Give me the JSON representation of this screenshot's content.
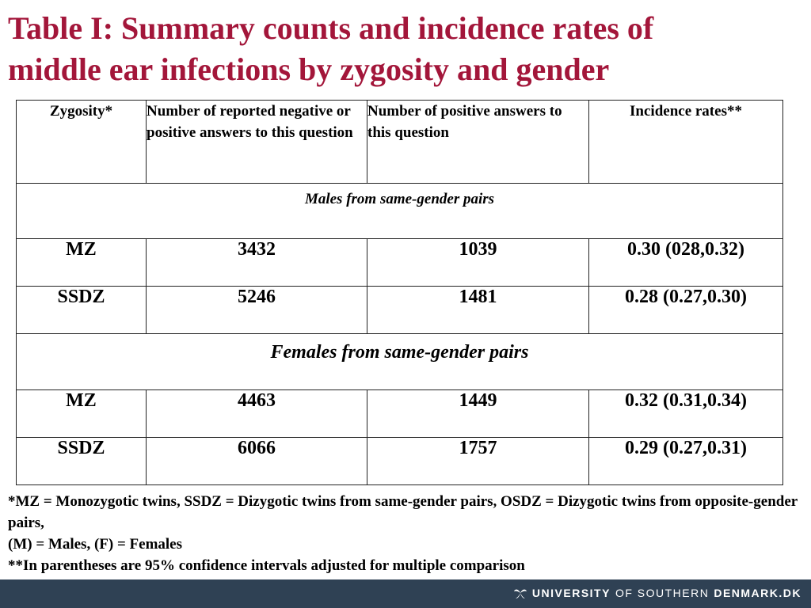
{
  "title": {
    "line1": "Table I: Summary counts and incidence rates of",
    "line2": "middle ear infections by zygosity and gender"
  },
  "table": {
    "headers": [
      "Zygosity*",
      "Number of reported negative or positive answers to this question",
      "Number of positive answers to this question",
      "Incidence rates**"
    ],
    "sections": [
      {
        "label": "Males from same-gender pairs",
        "rows": [
          [
            "MZ",
            "3432",
            "1039",
            "0.30 (028,0.32)"
          ],
          [
            "SSDZ",
            "5246",
            "1481",
            "0.28 (0.27,0.30)"
          ]
        ]
      },
      {
        "label": "Females from same-gender pairs",
        "rows": [
          [
            "MZ",
            "4463",
            "1449",
            "0.32 (0.31,0.34)"
          ],
          [
            "SSDZ",
            "6066",
            "1757",
            "0.29 (0.27,0.31)"
          ]
        ]
      }
    ]
  },
  "footnotes": [
    "*MZ = Monozygotic twins, SSDZ = Dizygotic twins from same-gender pairs, OSDZ = Dizygotic twins from opposite-gender pairs,",
    "(M) = Males, (F) = Females",
    "**In parentheses are 95% confidence intervals adjusted for multiple comparison"
  ],
  "footer": {
    "brand_university": "UNIVERSITY",
    "brand_of_southern": "OF SOUTHERN",
    "brand_denmark": "DENMARK.DK",
    "logo_icon": "sdu-swirl-logo-icon",
    "bar_color": "#2f4154"
  },
  "colors": {
    "title": "#a3163a"
  }
}
